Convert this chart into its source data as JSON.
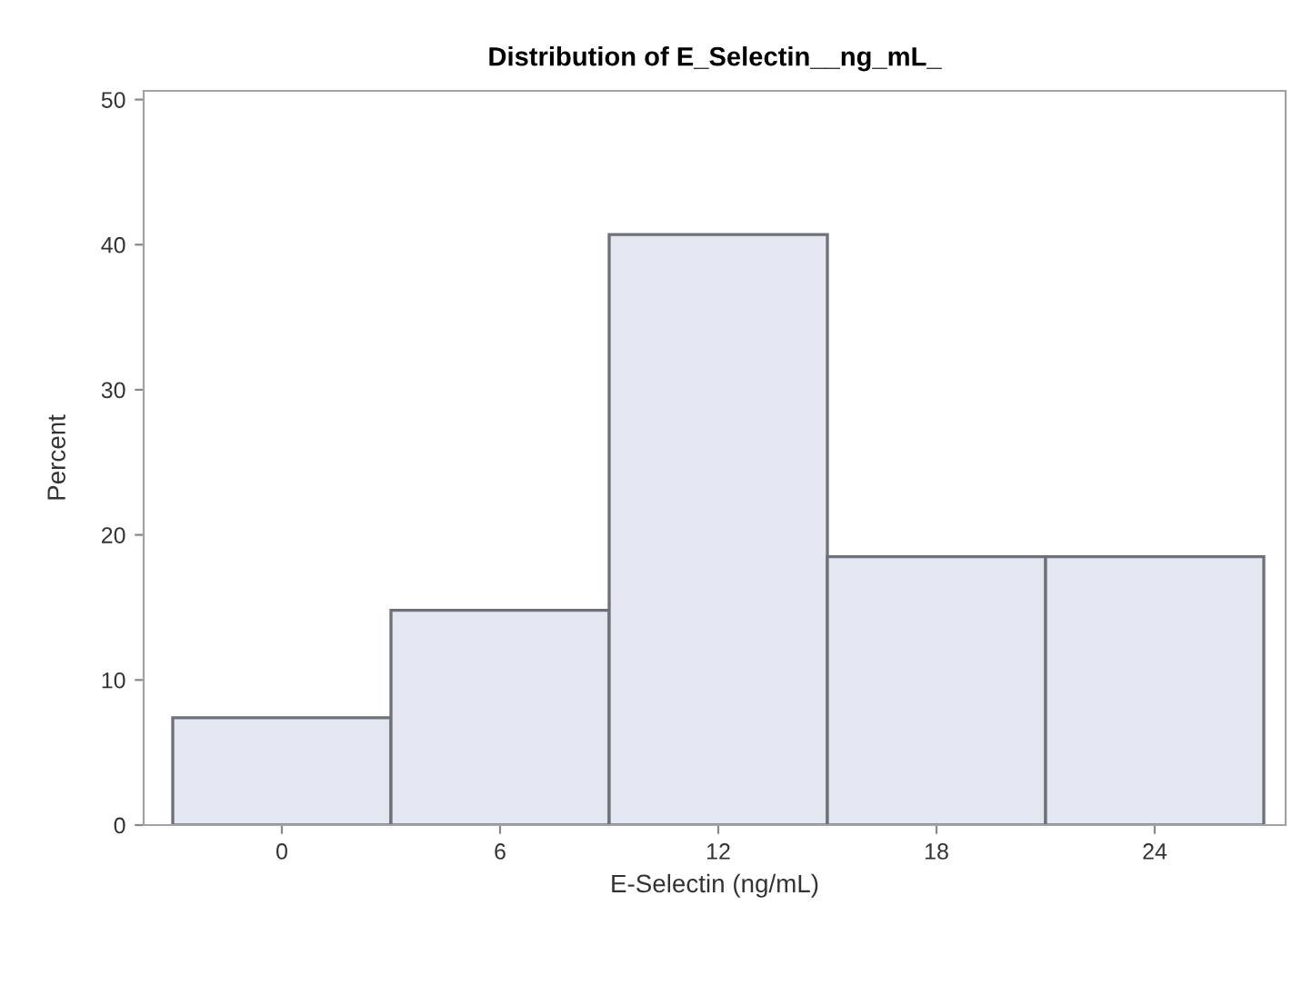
{
  "chart_data": {
    "type": "histogram",
    "title": "Distribution of E_Selectin__ng_mL_",
    "xlabel": "E-Selectin (ng/mL)",
    "ylabel": "Percent",
    "bins": [
      -3,
      3,
      9,
      15,
      21,
      27
    ],
    "values": [
      7.4,
      14.8,
      40.7,
      18.5,
      18.5
    ],
    "color": "#e3e7f1",
    "xlim": [
      -3.8,
      27.6
    ],
    "xticks": [
      0,
      6,
      12,
      18,
      24
    ],
    "ylim": [
      0,
      50.6
    ],
    "yticks": [
      0,
      10,
      20,
      30,
      40,
      50
    ],
    "grid": false
  }
}
